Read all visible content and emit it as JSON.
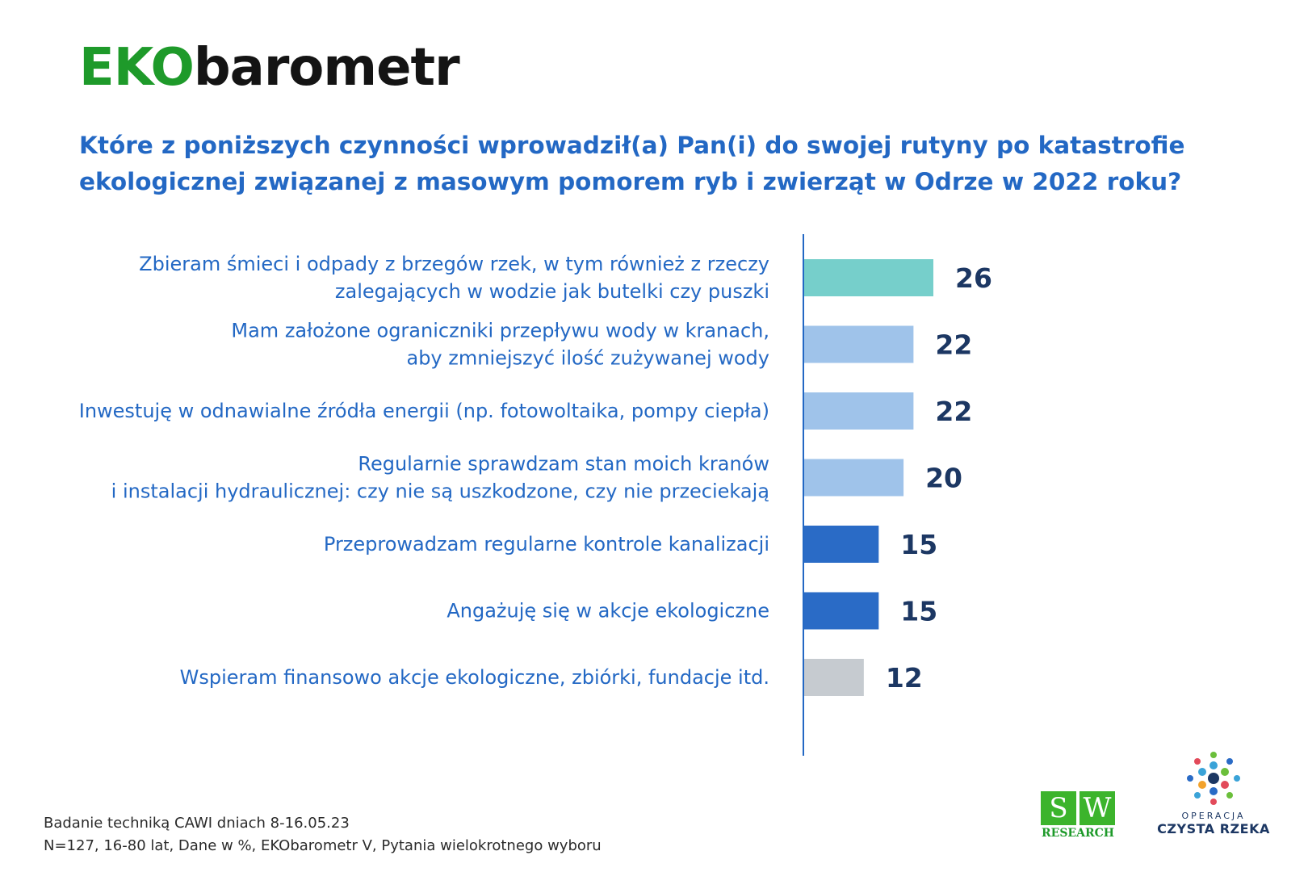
{
  "logo": {
    "part1": "EKO",
    "part2": "barometr"
  },
  "title": {
    "line1": "Które z poniższych czynności wprowadził(a) Pan(i) do swojej rutyny po katastrofie",
    "line2": "ekologicznej związanej z masowym pomorem ryb i zwierząt w Odrze w 2022 roku?"
  },
  "chart_data": {
    "type": "bar",
    "orientation": "horizontal",
    "categories": [
      [
        "Zbieram śmieci i odpady z brzegów rzek, w tym również z rzeczy",
        "zalegających w wodzie jak butelki czy puszki"
      ],
      [
        "Mam założone ograniczniki przepływu wody w kranach,",
        "aby zmniejszyć ilość zużywanej wody"
      ],
      [
        "Inwestuję w odnawialne źródła energii (np. fotowoltaika, pompy ciepła)"
      ],
      [
        "Regularnie sprawdzam  stan moich kranów",
        "i instalacji hydraulicznej: czy nie są uszkodzone, czy nie przeciekają"
      ],
      [
        "Przeprowadzam regularne kontrole kanalizacji"
      ],
      [
        "Angażuję się w akcje ekologiczne"
      ],
      [
        "Wspieram finansowo akcje ekologiczne, zbiórki, fundacje itd."
      ]
    ],
    "values": [
      26,
      22,
      22,
      20,
      15,
      15,
      12
    ],
    "colors": [
      "#76cfcb",
      "#9fc3ea",
      "#9fc3ea",
      "#9fc3ea",
      "#2a6bc6",
      "#2a6bc6",
      "#c6cbd0"
    ],
    "axis_color": "#2368c4",
    "xlim": [
      0,
      26
    ],
    "grid": false,
    "legend": "none",
    "unit": "%"
  },
  "footer": {
    "line1": "Badanie techniką CAWI dniach 8-16.05.23",
    "line2": "N=127, 16-80 lat, Dane w %, EKObarometr V, Pytania wielokrotnego wyboru"
  },
  "logos": {
    "sw": {
      "s": "S",
      "w": "W",
      "research": "RESEARCH"
    },
    "operacja": {
      "small": "OPERACJA",
      "big": "CZYSTA RZEKA"
    }
  }
}
